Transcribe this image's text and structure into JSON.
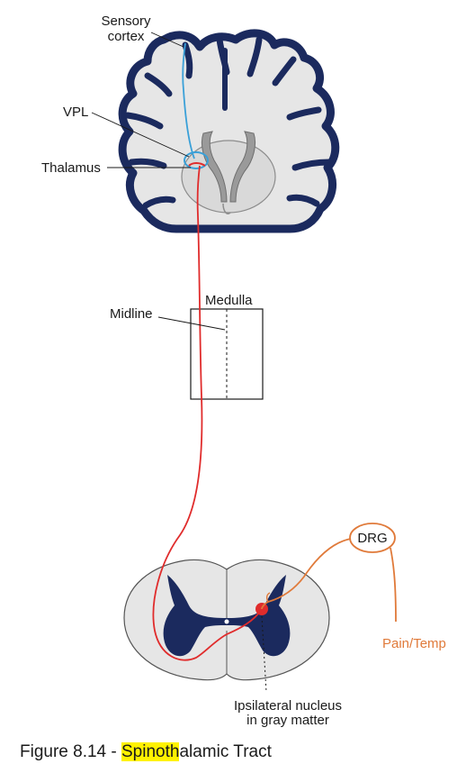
{
  "labels": {
    "sensory_cortex_line1": "Sensory",
    "sensory_cortex_line2": "cortex",
    "vpl": "VPL",
    "thalamus": "Thalamus",
    "medulla": "Medulla",
    "midline": "Midline",
    "drg": "DRG",
    "pain_temp": "Pain/Temp",
    "ipsilateral_line1": "Ipsilateral nucleus",
    "ipsilateral_line2": "in gray matter"
  },
  "caption": {
    "prefix": "Figure 8.14 - ",
    "highlighted": "Spinoth",
    "suffix": "alamic Tract"
  },
  "colors": {
    "cortex": "#1b2a5e",
    "brain_fill": "#e6e6e6",
    "tract_red": "#e02c2c",
    "first_order_orange": "#e07a3a",
    "cortical_neuron_blue": "#3aa0d8",
    "highlight": "#fff200"
  }
}
